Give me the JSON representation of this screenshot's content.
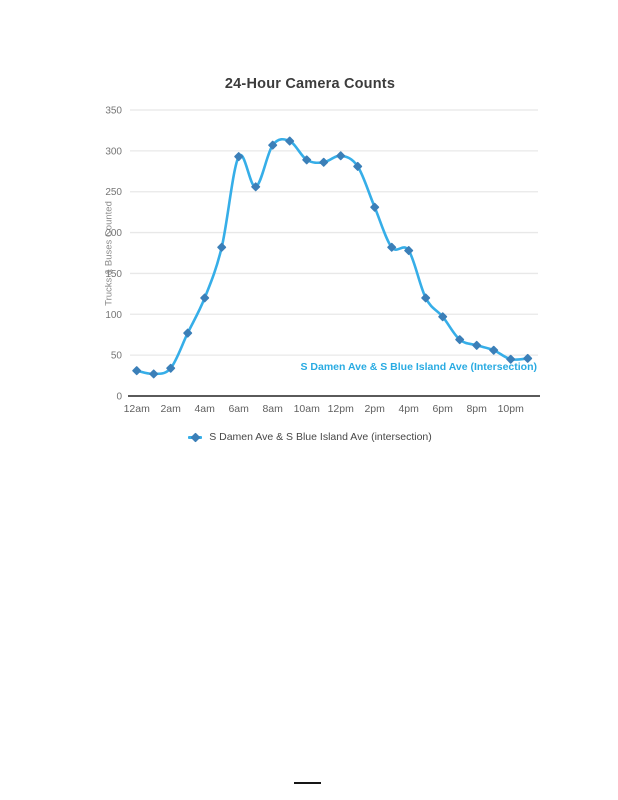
{
  "chart": {
    "title": "24-Hour Camera Counts",
    "ylabel": "Trucks & Buses Counted",
    "annotation": "S Damen Ave & S Blue Island Ave (Intersection)",
    "colors": {
      "line": "#36aee8",
      "marker": "#3b7fb8",
      "annotation_text": "#29abe2",
      "gridline": "#e8e8e8",
      "axis_line": "#424242",
      "tick_label": "#757575",
      "title_text": "#3c3c3c"
    }
  },
  "chart_data": {
    "type": "line",
    "title": "24-Hour Camera Counts",
    "xlabel": "",
    "ylabel": "Trucks & Buses Counted",
    "categories": [
      "12am",
      "1am",
      "2am",
      "3am",
      "4am",
      "5am",
      "6am",
      "7am",
      "8am",
      "9am",
      "10am",
      "11am",
      "12pm",
      "1pm",
      "2pm",
      "3pm",
      "4pm",
      "5pm",
      "6pm",
      "7pm",
      "8pm",
      "9pm",
      "10pm",
      "11pm"
    ],
    "x_tick_labels": [
      "12am",
      "2am",
      "4am",
      "6am",
      "8am",
      "10am",
      "12pm",
      "2pm",
      "4pm",
      "6pm",
      "8pm",
      "10pm"
    ],
    "y_ticks": [
      0,
      50,
      100,
      150,
      200,
      250,
      300,
      350
    ],
    "ylim": [
      0,
      350
    ],
    "grid": true,
    "line_style": "smooth",
    "marker": "diamond",
    "legend_position": "bottom",
    "annotation": "S Damen Ave & S Blue Island Ave (Intersection)",
    "series": [
      {
        "name": "S Damen Ave & S Blue Island Ave (intersection)",
        "values": [
          31,
          27,
          34,
          77,
          120,
          182,
          293,
          256,
          307,
          312,
          289,
          286,
          294,
          281,
          231,
          182,
          178,
          120,
          97,
          69,
          62,
          56,
          45,
          46
        ]
      }
    ]
  }
}
